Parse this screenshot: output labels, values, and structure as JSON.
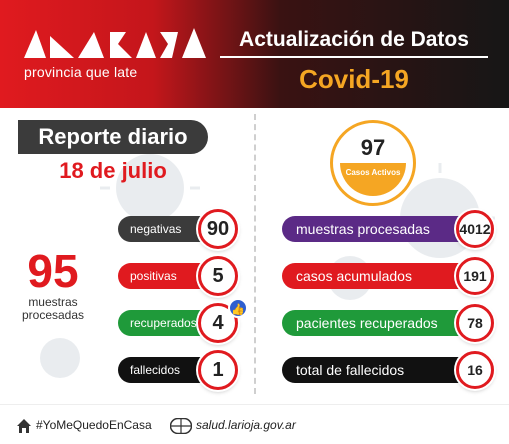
{
  "header": {
    "tagline": "provincia que late",
    "title": "Actualización de Datos",
    "subtitle": "Covid-19"
  },
  "report": {
    "label": "Reporte diario",
    "date": "18 de julio",
    "samples_total": "95",
    "samples_caption": "muestras procesadas"
  },
  "daily_stats": [
    {
      "label": "negativas",
      "value": "90",
      "color": "#3b3b3b"
    },
    {
      "label": "positivas",
      "value": "5",
      "color": "#e01a1f"
    },
    {
      "label": "recuperados",
      "value": "4",
      "color": "#1f9a3a"
    },
    {
      "label": "fallecidos",
      "value": "1",
      "color": "#111111"
    }
  ],
  "active_cases": {
    "value": "97",
    "caption": "Casos Activos"
  },
  "cumulative_stats": [
    {
      "label": "muestras procesadas",
      "value": "4012",
      "color": "#5b2a86"
    },
    {
      "label": "casos acumulados",
      "value": "191",
      "color": "#e01a1f"
    },
    {
      "label": "pacientes recuperados",
      "value": "78",
      "color": "#1f9a3a"
    },
    {
      "label": "total de fallecidos",
      "value": "16",
      "color": "#111111"
    }
  ],
  "footer": {
    "hashtag": "#YoMeQuedoEnCasa",
    "website": "salud.larioja.gov.ar"
  },
  "colors": {
    "brand_red": "#e01a1f",
    "accent_orange": "#f5a623"
  },
  "icons": {
    "like": "thumbs-up-icon",
    "home": "home-icon",
    "web": "globe-icon"
  }
}
